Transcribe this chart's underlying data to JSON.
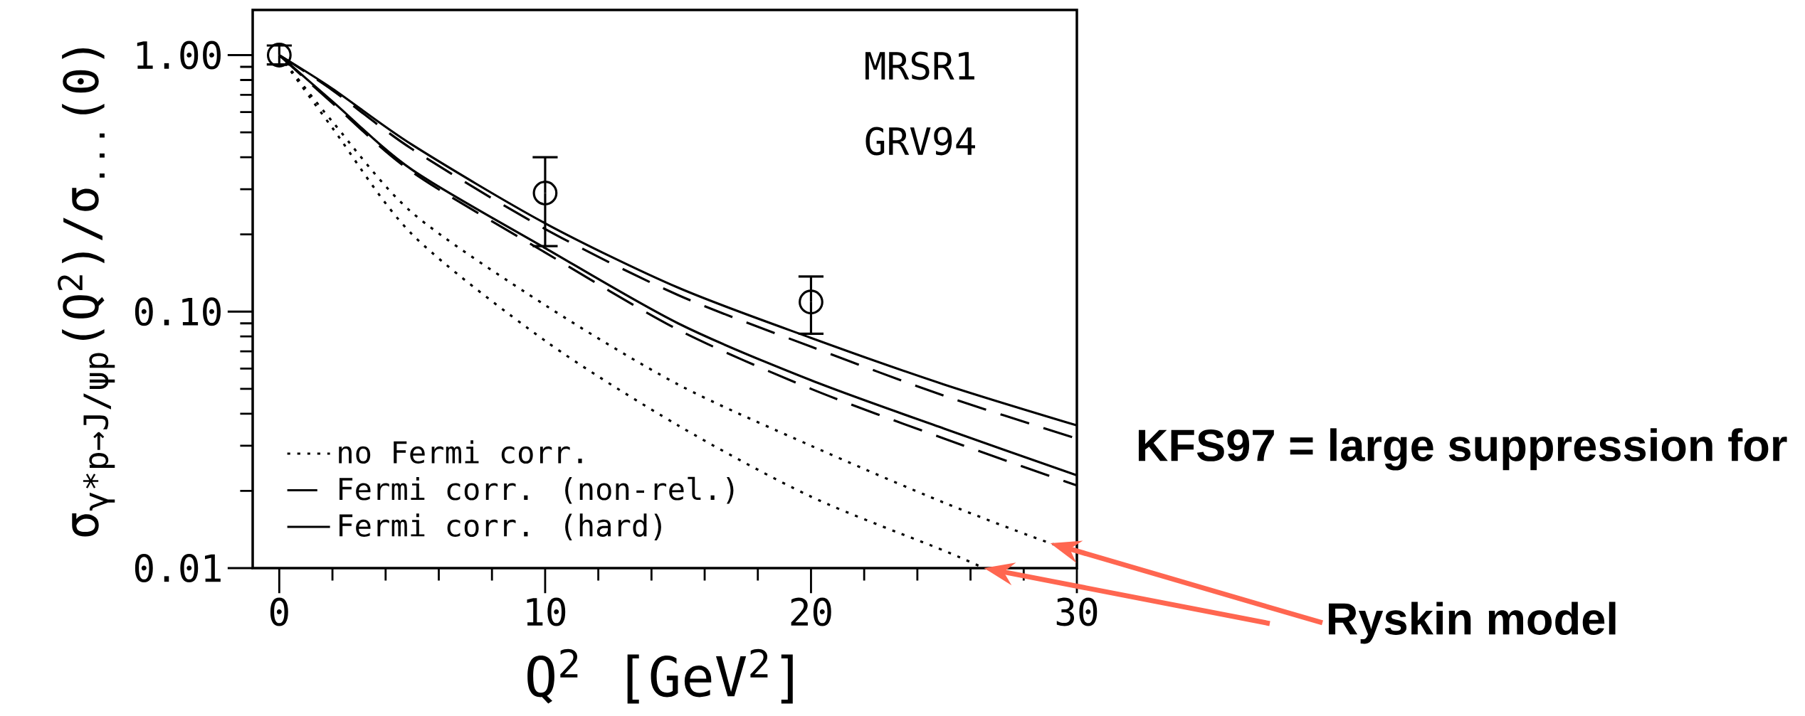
{
  "chart_data": {
    "type": "line",
    "xlabel": "Q$^{2}$ [GeV$^{2}$]",
    "ylabel": "σ$_{γ*p→J/ψp}$(Q$^{2}$)/σ$_{...}$(0)",
    "log": "y",
    "xlim": [
      -1,
      30
    ],
    "ylim": [
      0.01,
      1.5
    ],
    "xticks": [
      0,
      10,
      20,
      30
    ],
    "yticks": [
      {
        "value": 1,
        "label": "1.00"
      },
      {
        "value": 0.1,
        "label": "0.10"
      },
      {
        "value": 0.01,
        "label": "0.01"
      }
    ],
    "grid": false,
    "legend": "bottom left",
    "marker": "none",
    "series": [
      {
        "name": "no Fermi corr.",
        "color": "#000000",
        "line_style": "dotted",
        "x": [
          0,
          2,
          5,
          10,
          15,
          20,
          25,
          29,
          30
        ],
        "values": [
          1,
          0.55,
          0.243,
          0.106,
          0.052,
          0.03,
          0.018,
          0.0125,
          0.0118
        ]
      },
      {
        "name": "Fermi corr. (non-rel.)",
        "color": "#000000",
        "line_style": "dashed",
        "x": [
          0,
          2,
          5,
          10,
          15,
          20,
          25,
          30
        ],
        "values": [
          1,
          0.73,
          0.43,
          0.21,
          0.116,
          0.073,
          0.047,
          0.032
        ]
      },
      {
        "name": "Fermi corr. (hard)",
        "color": "#000000",
        "line_style": "solid",
        "x": [
          0,
          2,
          5,
          10,
          15,
          20,
          25,
          30
        ],
        "values": [
          1,
          0.74,
          0.447,
          0.221,
          0.124,
          0.079,
          0.052,
          0.036
        ]
      },
      {
        "color": "#000000",
        "line_style": "dotted",
        "x": [
          0,
          2,
          5,
          10,
          15,
          20,
          25,
          26.5
        ],
        "values": [
          1,
          0.52,
          0.2,
          0.077,
          0.036,
          0.019,
          0.0117,
          0.01
        ]
      },
      {
        "color": "#000000",
        "line_style": "dashed",
        "x": [
          0,
          2,
          5,
          10,
          15,
          20,
          25,
          30
        ],
        "values": [
          1,
          0.65,
          0.35,
          0.17,
          0.085,
          0.05,
          0.032,
          0.021
        ]
      },
      {
        "color": "#000000",
        "line_style": "solid",
        "x": [
          0,
          2,
          5,
          10,
          15,
          20,
          25,
          30
        ],
        "values": [
          1,
          0.66,
          0.357,
          0.177,
          0.09,
          0.054,
          0.035,
          0.023
        ]
      },
      {
        "type": "scatter",
        "marker": "circle",
        "color": "#000000",
        "x": [
          0,
          10,
          20
        ],
        "values": [
          1.0,
          0.29,
          0.109
        ],
        "errors": [
          [
            0.92,
            1.09
          ],
          [
            0.18,
            0.4
          ],
          [
            0.082,
            0.137
          ]
        ]
      }
    ],
    "annotations": [
      "MRSR1",
      "GRV94",
      "KFS97 = large suppression for",
      "Ryskin model"
    ]
  }
}
